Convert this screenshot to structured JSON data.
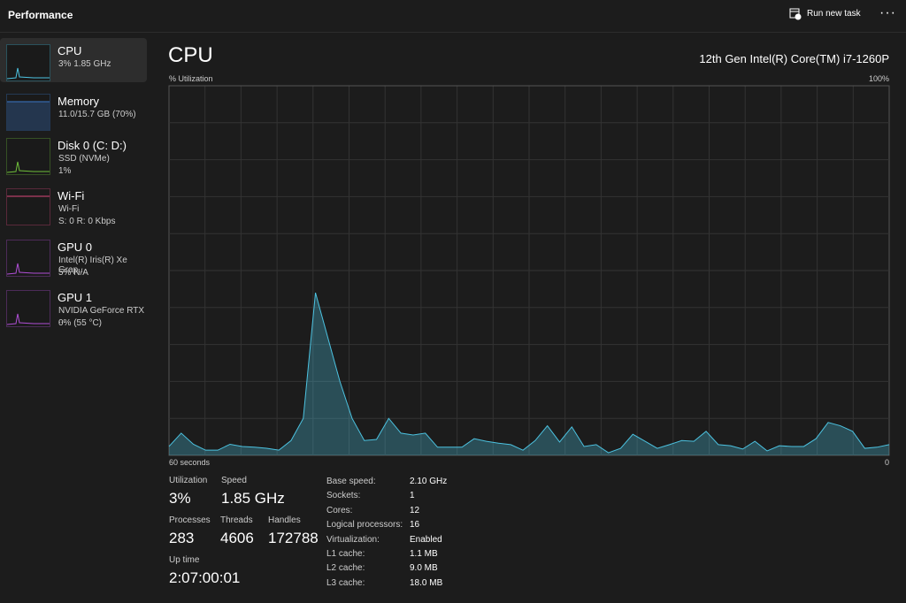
{
  "header": {
    "title": "Performance",
    "run_new_task": "Run new task"
  },
  "sidebar": [
    {
      "name": "CPU",
      "lines": [
        "3%  1.85 GHz"
      ],
      "color": "#4cc2e0"
    },
    {
      "name": "Memory",
      "lines": [
        "11.0/15.7 GB (70%)"
      ],
      "color": "#3a78c8"
    },
    {
      "name": "Disk 0 (C: D:)",
      "lines": [
        "SSD (NVMe)",
        "1%"
      ],
      "color": "#6fbf3a"
    },
    {
      "name": "Wi-Fi",
      "lines": [
        "Wi-Fi",
        "S: 0  R: 0 Kbps"
      ],
      "color": "#d9487a"
    },
    {
      "name": "GPU 0",
      "lines": [
        "Intel(R) Iris(R) Xe Grap...",
        "5%  N/A"
      ],
      "color": "#b04fd6"
    },
    {
      "name": "GPU 1",
      "lines": [
        "NVIDIA GeForce RTX ...",
        "0%  (55 °C)"
      ],
      "color": "#b04fd6"
    }
  ],
  "main": {
    "title": "CPU",
    "model": "12th Gen Intel(R) Core(TM) i7-1260P",
    "graph": {
      "type": "area",
      "y_label": "% Utilization",
      "x_left_label": "60 seconds",
      "x_right_label": "0",
      "ylim": [
        0,
        100
      ],
      "yticks": [
        {
          "value": 100,
          "label": "100%"
        }
      ],
      "grid": true,
      "color": "#4cc2e0",
      "values": [
        2.4,
        6,
        3,
        1.4,
        1.4,
        3,
        2.4,
        2.2,
        1.9,
        1.4,
        4,
        10,
        44,
        32,
        20,
        10,
        4,
        4.3,
        10,
        6,
        5.5,
        6,
        2.2,
        2.2,
        2.2,
        4.5,
        3.8,
        3.3,
        2.9,
        1.4,
        4,
        8,
        3.6,
        7.7,
        2.4,
        2.9,
        0.7,
        1.9,
        5.7,
        3.8,
        1.9,
        2.9,
        4,
        3.8,
        6.5,
        2.9,
        2.6,
        1.7,
        3.8,
        1.2,
        2.6,
        2.4,
        2.4,
        4.5,
        8.9,
        8,
        6.5,
        1.9,
        2.2,
        2.9
      ]
    },
    "stats": [
      {
        "label": "Utilization",
        "value": "3%"
      },
      {
        "label": "Speed",
        "value": "1.85 GHz"
      },
      {
        "label": "Processes",
        "value": "283"
      },
      {
        "label": "Threads",
        "value": "4606"
      },
      {
        "label": "Handles",
        "value": "172788"
      },
      {
        "label": "Up time",
        "value": "2:07:00:01"
      }
    ],
    "details": [
      [
        "Base speed:",
        "2.10 GHz"
      ],
      [
        "Sockets:",
        "1"
      ],
      [
        "Cores:",
        "12"
      ],
      [
        "Logical processors:",
        "16"
      ],
      [
        "Virtualization:",
        "Enabled"
      ],
      [
        "L1 cache:",
        "1.1 MB"
      ],
      [
        "L2 cache:",
        "9.0 MB"
      ],
      [
        "L3 cache:",
        "18.0 MB"
      ]
    ]
  }
}
